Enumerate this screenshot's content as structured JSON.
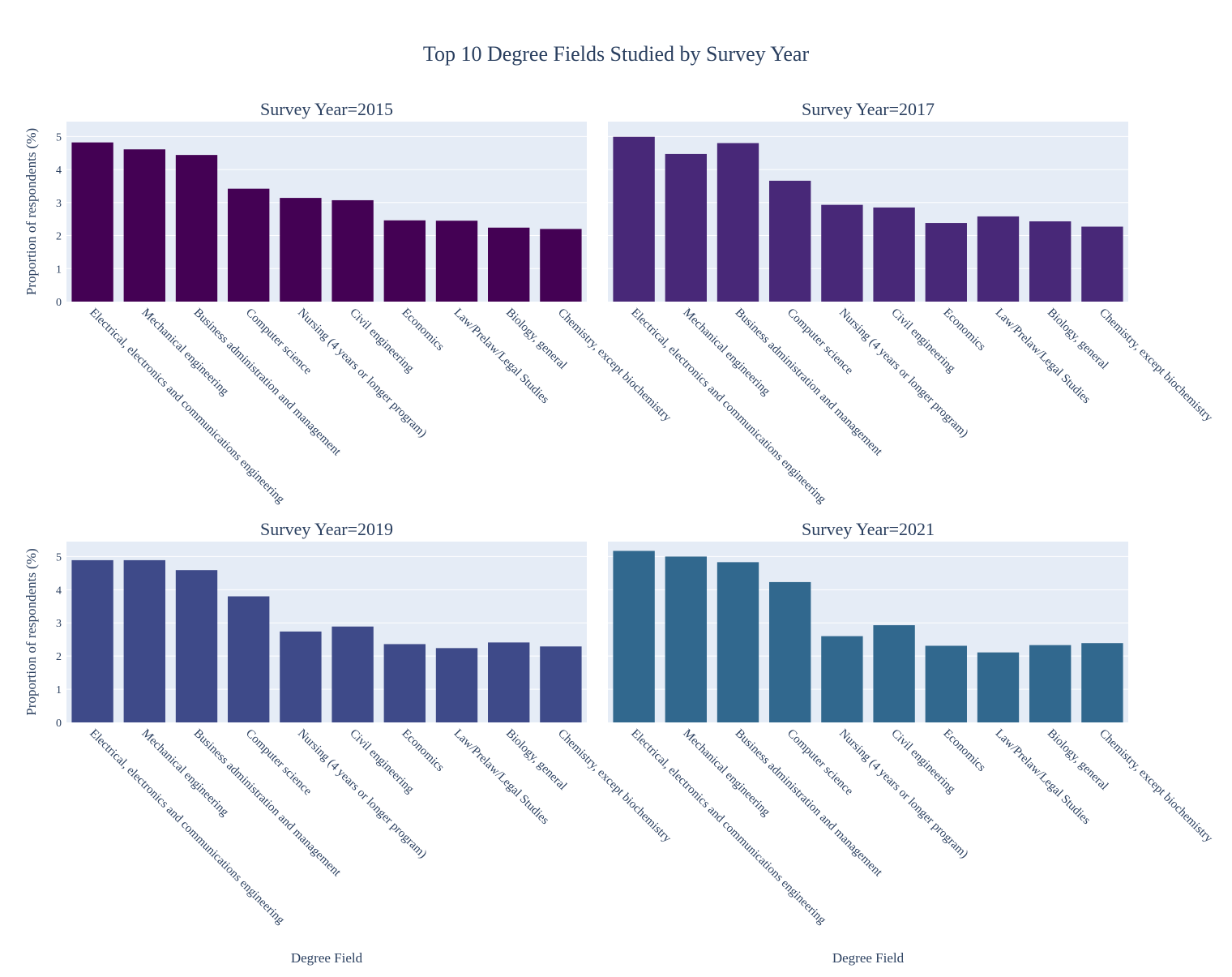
{
  "colors": {
    "plot_bg": "#E5ECF6",
    "grid": "#FFFFFF",
    "text": "#2a3f5f",
    "bar_2015": "#440154",
    "bar_2017": "#482878",
    "bar_2019": "#3E4A89",
    "bar_2021": "#31688E"
  },
  "chart_data": {
    "type": "bar",
    "title": "Top 10 Degree Fields Studied by Survey Year",
    "xlabel": "Degree Field",
    "ylabel": "Proportion of respondents (%)",
    "ylim": [
      0,
      5.45
    ],
    "yticks": [
      "0",
      "1",
      "2",
      "3",
      "4",
      "5"
    ],
    "grid": true,
    "categories": [
      "Electrical, electronics and communications engineering",
      "Mechanical engineering",
      "Business administration and management",
      "Computer science",
      "Nursing (4 years or longer program)",
      "Civil engineering",
      "Economics",
      "Law/Prelaw/Legal Studies",
      "Biology, general",
      "Chemistry, except biochemistry"
    ],
    "series": [
      {
        "name": "Survey Year=2015",
        "color_key": "bar_2015",
        "values": [
          4.82,
          4.61,
          4.44,
          3.42,
          3.14,
          3.07,
          2.46,
          2.45,
          2.24,
          2.2
        ]
      },
      {
        "name": "Survey Year=2017",
        "color_key": "bar_2017",
        "values": [
          4.99,
          4.47,
          4.8,
          3.66,
          2.93,
          2.85,
          2.38,
          2.58,
          2.43,
          2.27
        ]
      },
      {
        "name": "Survey Year=2019",
        "color_key": "bar_2019",
        "values": [
          4.89,
          4.89,
          4.59,
          3.8,
          2.74,
          2.89,
          2.36,
          2.24,
          2.41,
          2.29
        ]
      },
      {
        "name": "Survey Year=2021",
        "color_key": "bar_2021",
        "values": [
          5.17,
          5.0,
          4.83,
          4.23,
          2.6,
          2.93,
          2.31,
          2.11,
          2.33,
          2.39
        ]
      }
    ]
  }
}
